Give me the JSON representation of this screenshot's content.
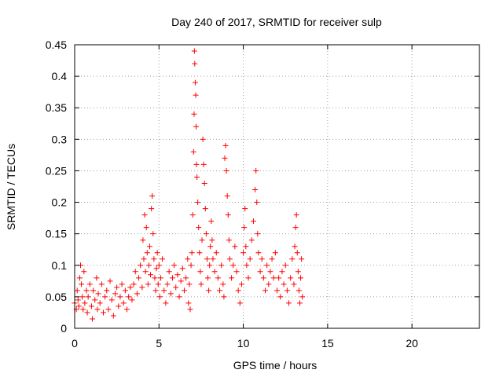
{
  "chart_data": {
    "type": "scatter",
    "title": "Day 240 of 2017, SRMTID for receiver sulp",
    "xlabel": "GPS time / hours",
    "ylabel": "SRMTID / TECUs",
    "xlim": [
      0,
      24
    ],
    "ylim": [
      0,
      0.45
    ],
    "xticks": [
      0,
      5,
      10,
      15,
      20
    ],
    "xtick_labels": [
      "0",
      "5",
      "10",
      "15",
      "20"
    ],
    "yticks": [
      0,
      0.05,
      0.1,
      0.15,
      0.2,
      0.25,
      0.3,
      0.35,
      0.4,
      0.45
    ],
    "ytick_labels": [
      "0",
      "0.05",
      "0.1",
      "0.15",
      "0.2",
      "0.25",
      "0.3",
      "0.35",
      "0.4",
      "0.45"
    ],
    "grid": true,
    "marker": "+",
    "color": "#ff0000",
    "series": [
      {
        "name": "SRMTID",
        "points": [
          [
            0.0,
            0.04
          ],
          [
            0.1,
            0.03
          ],
          [
            0.15,
            0.06
          ],
          [
            0.2,
            0.045
          ],
          [
            0.25,
            0.035
          ],
          [
            0.3,
            0.08
          ],
          [
            0.35,
            0.1
          ],
          [
            0.4,
            0.07
          ],
          [
            0.45,
            0.05
          ],
          [
            0.5,
            0.03
          ],
          [
            0.55,
            0.09
          ],
          [
            0.6,
            0.04
          ],
          [
            0.7,
            0.06
          ],
          [
            0.75,
            0.025
          ],
          [
            0.8,
            0.05
          ],
          [
            0.9,
            0.07
          ],
          [
            1.0,
            0.035
          ],
          [
            1.05,
            0.015
          ],
          [
            1.1,
            0.06
          ],
          [
            1.2,
            0.045
          ],
          [
            1.3,
            0.08
          ],
          [
            1.35,
            0.03
          ],
          [
            1.4,
            0.055
          ],
          [
            1.5,
            0.04
          ],
          [
            1.6,
            0.07
          ],
          [
            1.7,
            0.025
          ],
          [
            1.8,
            0.05
          ],
          [
            1.9,
            0.06
          ],
          [
            2.0,
            0.03
          ],
          [
            2.1,
            0.075
          ],
          [
            2.2,
            0.045
          ],
          [
            2.3,
            0.02
          ],
          [
            2.4,
            0.055
          ],
          [
            2.5,
            0.065
          ],
          [
            2.6,
            0.035
          ],
          [
            2.7,
            0.05
          ],
          [
            2.8,
            0.07
          ],
          [
            2.9,
            0.04
          ],
          [
            3.0,
            0.06
          ],
          [
            3.1,
            0.03
          ],
          [
            3.2,
            0.05
          ],
          [
            3.3,
            0.065
          ],
          [
            3.4,
            0.045
          ],
          [
            3.5,
            0.07
          ],
          [
            3.6,
            0.09
          ],
          [
            3.7,
            0.055
          ],
          [
            3.8,
            0.08
          ],
          [
            3.9,
            0.1
          ],
          [
            4.0,
            0.065
          ],
          [
            4.05,
            0.14
          ],
          [
            4.1,
            0.11
          ],
          [
            4.15,
            0.18
          ],
          [
            4.2,
            0.09
          ],
          [
            4.25,
            0.16
          ],
          [
            4.3,
            0.12
          ],
          [
            4.35,
            0.07
          ],
          [
            4.4,
            0.1
          ],
          [
            4.45,
            0.13
          ],
          [
            4.5,
            0.085
          ],
          [
            4.55,
            0.19
          ],
          [
            4.6,
            0.21
          ],
          [
            4.65,
            0.15
          ],
          [
            4.7,
            0.11
          ],
          [
            4.75,
            0.08
          ],
          [
            4.8,
            0.06
          ],
          [
            4.85,
            0.095
          ],
          [
            4.9,
            0.12
          ],
          [
            4.95,
            0.07
          ],
          [
            5.0,
            0.1
          ],
          [
            5.05,
            0.05
          ],
          [
            5.1,
            0.08
          ],
          [
            5.2,
            0.11
          ],
          [
            5.3,
            0.06
          ],
          [
            5.4,
            0.04
          ],
          [
            5.5,
            0.07
          ],
          [
            5.6,
            0.09
          ],
          [
            5.7,
            0.055
          ],
          [
            5.8,
            0.08
          ],
          [
            5.9,
            0.1
          ],
          [
            6.0,
            0.065
          ],
          [
            6.1,
            0.085
          ],
          [
            6.2,
            0.05
          ],
          [
            6.3,
            0.075
          ],
          [
            6.4,
            0.095
          ],
          [
            6.5,
            0.06
          ],
          [
            6.6,
            0.08
          ],
          [
            6.7,
            0.11
          ],
          [
            6.75,
            0.04
          ],
          [
            6.8,
            0.07
          ],
          [
            6.85,
            0.03
          ],
          [
            6.9,
            0.1
          ],
          [
            6.95,
            0.12
          ],
          [
            7.0,
            0.18
          ],
          [
            7.05,
            0.28
          ],
          [
            7.08,
            0.34
          ],
          [
            7.1,
            0.44
          ],
          [
            7.12,
            0.42
          ],
          [
            7.15,
            0.39
          ],
          [
            7.18,
            0.37
          ],
          [
            7.2,
            0.32
          ],
          [
            7.22,
            0.26
          ],
          [
            7.25,
            0.24
          ],
          [
            7.3,
            0.2
          ],
          [
            7.35,
            0.16
          ],
          [
            7.4,
            0.12
          ],
          [
            7.45,
            0.09
          ],
          [
            7.5,
            0.07
          ],
          [
            7.55,
            0.14
          ],
          [
            7.6,
            0.3
          ],
          [
            7.65,
            0.26
          ],
          [
            7.7,
            0.23
          ],
          [
            7.75,
            0.19
          ],
          [
            7.8,
            0.15
          ],
          [
            7.85,
            0.11
          ],
          [
            7.9,
            0.08
          ],
          [
            7.95,
            0.06
          ],
          [
            8.0,
            0.1
          ],
          [
            8.05,
            0.13
          ],
          [
            8.1,
            0.17
          ],
          [
            8.15,
            0.14
          ],
          [
            8.2,
            0.11
          ],
          [
            8.3,
            0.09
          ],
          [
            8.4,
            0.12
          ],
          [
            8.5,
            0.08
          ],
          [
            8.6,
            0.06
          ],
          [
            8.7,
            0.1
          ],
          [
            8.8,
            0.07
          ],
          [
            8.85,
            0.05
          ],
          [
            8.9,
            0.27
          ],
          [
            8.95,
            0.29
          ],
          [
            9.0,
            0.25
          ],
          [
            9.05,
            0.21
          ],
          [
            9.1,
            0.18
          ],
          [
            9.15,
            0.14
          ],
          [
            9.2,
            0.11
          ],
          [
            9.3,
            0.08
          ],
          [
            9.4,
            0.1
          ],
          [
            9.5,
            0.13
          ],
          [
            9.6,
            0.09
          ],
          [
            9.7,
            0.06
          ],
          [
            9.8,
            0.04
          ],
          [
            9.9,
            0.07
          ],
          [
            10.0,
            0.12
          ],
          [
            10.05,
            0.16
          ],
          [
            10.1,
            0.19
          ],
          [
            10.15,
            0.13
          ],
          [
            10.2,
            0.1
          ],
          [
            10.3,
            0.08
          ],
          [
            10.4,
            0.11
          ],
          [
            10.5,
            0.14
          ],
          [
            10.6,
            0.17
          ],
          [
            10.7,
            0.22
          ],
          [
            10.75,
            0.25
          ],
          [
            10.8,
            0.2
          ],
          [
            10.85,
            0.15
          ],
          [
            10.9,
            0.12
          ],
          [
            11.0,
            0.09
          ],
          [
            11.1,
            0.11
          ],
          [
            11.2,
            0.08
          ],
          [
            11.3,
            0.06
          ],
          [
            11.4,
            0.1
          ],
          [
            11.5,
            0.07
          ],
          [
            11.6,
            0.09
          ],
          [
            11.7,
            0.11
          ],
          [
            11.8,
            0.08
          ],
          [
            11.9,
            0.12
          ],
          [
            12.0,
            0.06
          ],
          [
            12.1,
            0.08
          ],
          [
            12.2,
            0.05
          ],
          [
            12.3,
            0.09
          ],
          [
            12.4,
            0.07
          ],
          [
            12.5,
            0.1
          ],
          [
            12.6,
            0.06
          ],
          [
            12.7,
            0.04
          ],
          [
            12.8,
            0.08
          ],
          [
            12.9,
            0.11
          ],
          [
            13.0,
            0.07
          ],
          [
            13.05,
            0.13
          ],
          [
            13.1,
            0.16
          ],
          [
            13.15,
            0.18
          ],
          [
            13.2,
            0.12
          ],
          [
            13.25,
            0.09
          ],
          [
            13.3,
            0.06
          ],
          [
            13.35,
            0.04
          ],
          [
            13.4,
            0.08
          ],
          [
            13.45,
            0.11
          ],
          [
            13.5,
            0.05
          ]
        ]
      }
    ]
  }
}
